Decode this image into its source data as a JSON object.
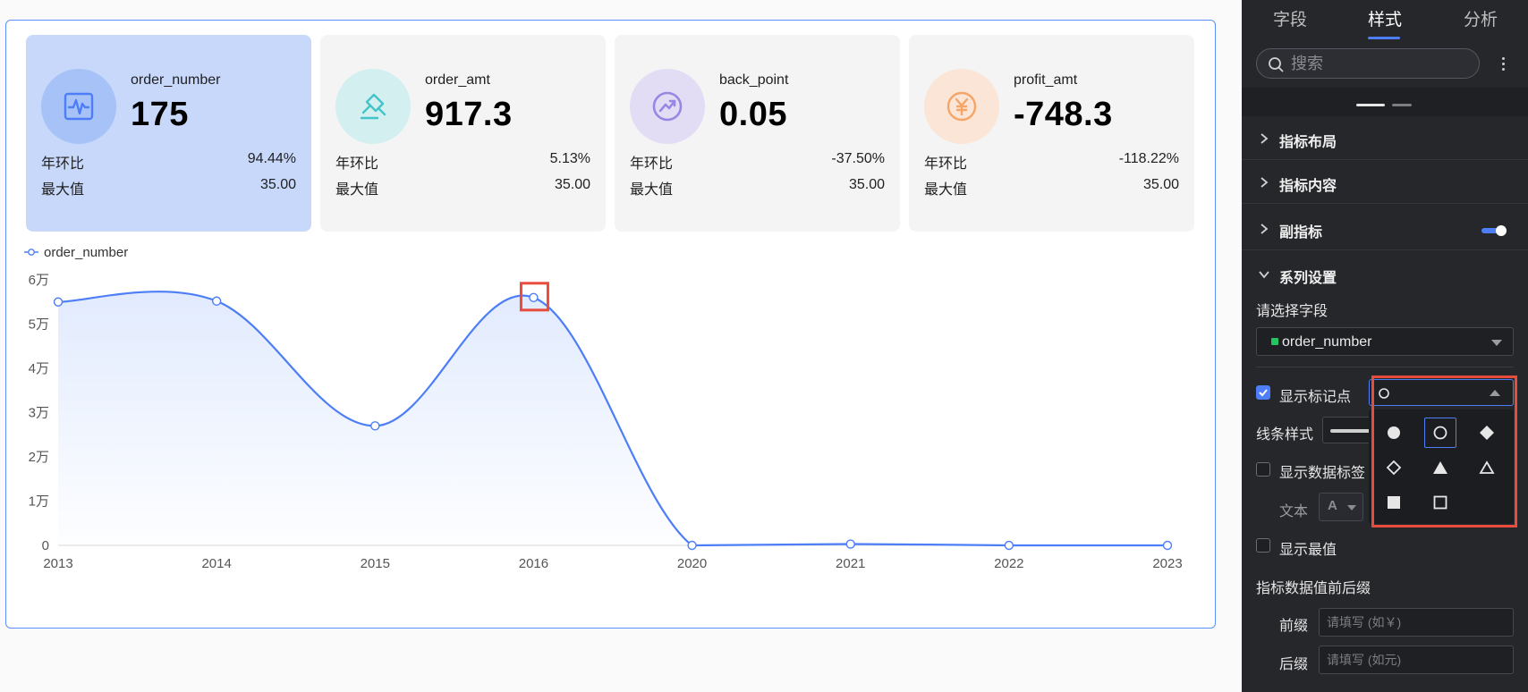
{
  "kpis": [
    {
      "name": "order_number",
      "value": "175",
      "row1_label": "年环比",
      "row1_value": "94.44%",
      "row2_label": "最大值",
      "row2_value": "35.00",
      "icon": "pulse-icon",
      "bg": "#a7c2f7",
      "fg": "#4d7ef7"
    },
    {
      "name": "order_amt",
      "value": "917.3",
      "row1_label": "年环比",
      "row1_value": "5.13%",
      "row2_label": "最大值",
      "row2_value": "35.00",
      "icon": "stamp-icon",
      "bg": "#d4eff0",
      "fg": "#44c4c9"
    },
    {
      "name": "back_point",
      "value": "0.05",
      "row1_label": "年环比",
      "row1_value": "-37.50%",
      "row2_label": "最大值",
      "row2_value": "35.00",
      "icon": "trend-circle-icon",
      "bg": "#e2ddf4",
      "fg": "#9a86e3"
    },
    {
      "name": "profit_amt",
      "value": "-748.3",
      "row1_label": "年环比",
      "row1_value": "-118.22%",
      "row2_label": "最大值",
      "row2_value": "35.00",
      "icon": "yen-icon",
      "bg": "#fbe5d6",
      "fg": "#f5a567"
    }
  ],
  "chart_data": {
    "type": "area",
    "categories": [
      "2013",
      "2014",
      "2015",
      "2016",
      "2020",
      "2021",
      "2022",
      "2023"
    ],
    "series": [
      {
        "name": "order_number",
        "values": [
          55000,
          55200,
          27000,
          56000,
          0,
          300,
          0,
          0
        ]
      }
    ],
    "yticks": [
      "0",
      "1万",
      "2万",
      "3万",
      "4万",
      "5万",
      "6万"
    ],
    "ylim": [
      0,
      60000
    ],
    "legend_position": "top-left",
    "grid": false,
    "line_color": "#4d7ef7",
    "marker": "hollow-circle",
    "highlight_index": 3
  },
  "panel": {
    "tabs": [
      "字段",
      "样式",
      "分析"
    ],
    "active_tab": "样式",
    "search_placeholder": "搜索",
    "sections": [
      "指标布局",
      "指标内容",
      "副指标",
      "系列设置"
    ],
    "field_label": "请选择字段",
    "field_value": "order_number",
    "show_marker": "显示标记点",
    "line_style": "线条样式",
    "show_data_label": "显示数据标签",
    "text_label": "文本",
    "text_font": "A",
    "show_extreme": "显示最值",
    "prefix_suffix_title": "指标数据值前后缀",
    "prefix_label": "前缀",
    "prefix_placeholder": "请填写 (如￥)",
    "suffix_label": "后缀",
    "suffix_placeholder": "请填写 (如元)",
    "marker_options": [
      "filled-circle",
      "hollow-circle",
      "filled-diamond",
      "hollow-diamond",
      "filled-triangle",
      "hollow-triangle",
      "filled-square",
      "hollow-square"
    ],
    "selected_marker": "hollow-circle"
  }
}
